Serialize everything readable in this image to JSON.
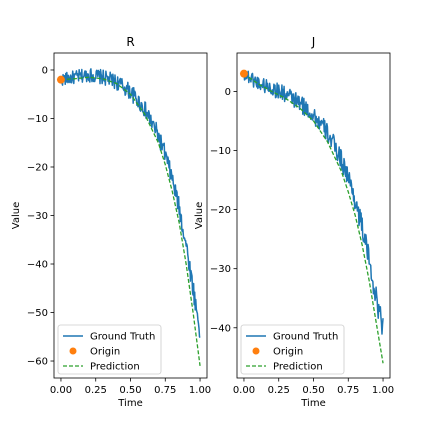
{
  "chart_data": [
    {
      "type": "line",
      "title": "R",
      "xlabel": "Time",
      "ylabel": "Value",
      "xlim": [
        -0.05,
        1.05
      ],
      "ylim": [
        -63.5,
        3.5
      ],
      "xticks": [
        0.0,
        0.25,
        0.5,
        0.75,
        1.0
      ],
      "xtick_labels": [
        "0.00",
        "0.25",
        "0.50",
        "0.75",
        "1.00"
      ],
      "yticks": [
        0,
        -10,
        -20,
        -30,
        -40,
        -50,
        -60
      ],
      "ytick_labels": [
        "0",
        "−10",
        "−20",
        "−30",
        "−40",
        "−50",
        "−60"
      ],
      "legend_position": "lower left",
      "series": [
        {
          "name": "Ground Truth",
          "kind": "noisy-line",
          "color": "#1f77b4",
          "x": [
            0.0,
            0.1,
            0.2,
            0.3,
            0.4,
            0.5,
            0.6,
            0.7,
            0.75,
            0.8,
            0.85,
            0.9,
            0.95,
            1.0
          ],
          "y": [
            -2.0,
            -1.5,
            -1.0,
            -1.5,
            -2.5,
            -4.5,
            -8.0,
            -13.5,
            -17.5,
            -22.5,
            -28.5,
            -36.0,
            -45.0,
            -54.0
          ],
          "noise": 1.3
        },
        {
          "name": "Origin",
          "kind": "marker",
          "color": "#ff7f0e",
          "x": [
            0.0
          ],
          "y": [
            -2.0
          ]
        },
        {
          "name": "Prediction",
          "kind": "dashed-line",
          "color": "#2ca02c",
          "x": [
            0.0,
            0.1,
            0.2,
            0.3,
            0.4,
            0.5,
            0.6,
            0.7,
            0.75,
            0.8,
            0.85,
            0.9,
            0.95,
            1.0
          ],
          "y": [
            -2.0,
            -1.8,
            -1.5,
            -1.8,
            -2.8,
            -5.0,
            -9.0,
            -15.0,
            -19.5,
            -25.0,
            -31.5,
            -40.0,
            -50.0,
            -61.0
          ]
        }
      ]
    },
    {
      "type": "line",
      "title": "J",
      "xlabel": "Time",
      "ylabel": "Value",
      "xlim": [
        -0.05,
        1.05
      ],
      "ylim": [
        -48.5,
        6.5
      ],
      "xticks": [
        0.0,
        0.25,
        0.5,
        0.75,
        1.0
      ],
      "xtick_labels": [
        "0.00",
        "0.25",
        "0.50",
        "0.75",
        "1.00"
      ],
      "yticks": [
        0,
        -10,
        -20,
        -30,
        -40
      ],
      "ytick_labels": [
        "0",
        "−10",
        "−20",
        "−30",
        "−40"
      ],
      "legend_position": "lower left",
      "series": [
        {
          "name": "Ground Truth",
          "kind": "noisy-line",
          "color": "#1f77b4",
          "x": [
            0.0,
            0.1,
            0.2,
            0.3,
            0.4,
            0.5,
            0.6,
            0.7,
            0.75,
            0.8,
            0.85,
            0.9,
            0.95,
            1.0
          ],
          "y": [
            3.0,
            1.5,
            0.5,
            -0.5,
            -2.0,
            -4.0,
            -7.0,
            -11.5,
            -14.5,
            -18.5,
            -23.0,
            -28.5,
            -35.0,
            -40.0
          ],
          "noise": 1.2
        },
        {
          "name": "Origin",
          "kind": "marker",
          "color": "#ff7f0e",
          "x": [
            0.0
          ],
          "y": [
            3.0
          ]
        },
        {
          "name": "Prediction",
          "kind": "dashed-line",
          "color": "#2ca02c",
          "x": [
            0.0,
            0.1,
            0.2,
            0.3,
            0.4,
            0.5,
            0.6,
            0.7,
            0.75,
            0.8,
            0.85,
            0.9,
            0.95,
            1.0
          ],
          "y": [
            3.0,
            1.3,
            0.0,
            -1.2,
            -2.8,
            -5.0,
            -8.5,
            -13.5,
            -17.0,
            -21.0,
            -26.0,
            -32.0,
            -39.0,
            -46.0
          ]
        }
      ]
    }
  ]
}
